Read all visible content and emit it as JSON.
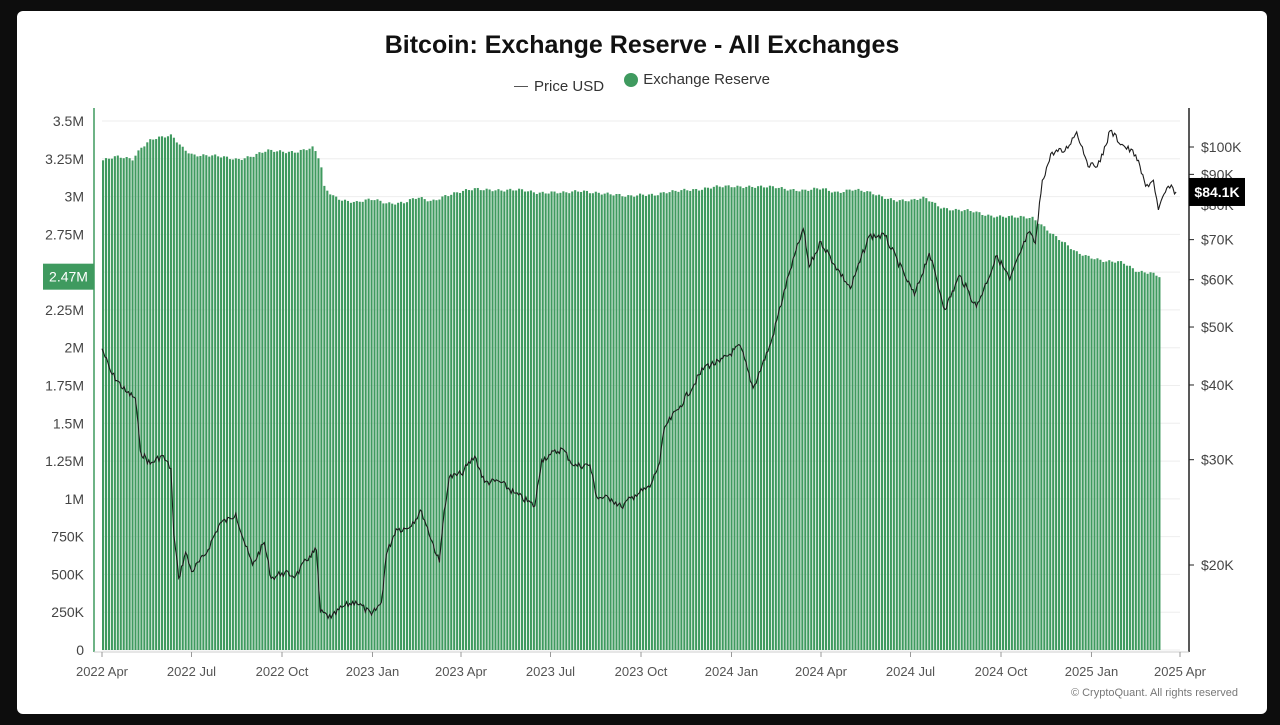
{
  "chart": {
    "title": "Bitcoin: Exchange Reserve - All Exchanges",
    "legend": {
      "price_label": "Price USD",
      "reserve_label": "Exchange Reserve"
    },
    "current_reserve_label": "2.47M",
    "current_price_label": "$84.1K",
    "watermark": "© CryptoQuant. All rights reserved"
  },
  "colors": {
    "reserve_bar": "#3f9a5f",
    "price_line": "#1c1c1c",
    "badge_reserve_bg": "#3f9a5f",
    "badge_price_bg": "#000000"
  },
  "chart_data": {
    "type": "bar",
    "title": "Bitcoin: Exchange Reserve - All Exchanges",
    "x_tick_labels": [
      "2022 Apr",
      "2022 Jul",
      "2022 Oct",
      "2023 Jan",
      "2023 Apr",
      "2023 Jul",
      "2023 Oct",
      "2024 Jan",
      "2024 Apr",
      "2024 Jul",
      "2024 Oct",
      "2025 Jan",
      "2025 Apr"
    ],
    "xlim": [
      "2022-04-01",
      "2025-04-01"
    ],
    "left_axis": {
      "name": "Exchange Reserve",
      "ylim": [
        0,
        3500000
      ],
      "ticks": [
        0,
        250000,
        500000,
        750000,
        1000000,
        1250000,
        1500000,
        1750000,
        2000000,
        2250000,
        2500000,
        2750000,
        3000000,
        3250000,
        3500000
      ],
      "tick_labels": [
        "0",
        "250K",
        "500K",
        "750K",
        "1M",
        "1.25M",
        "1.5M",
        "1.75M",
        "2M",
        "2.25M",
        "2.5M",
        "2.75M",
        "3M",
        "3.25M",
        "3.5M"
      ]
    },
    "right_axis": {
      "name": "Price USD",
      "scale": "log",
      "ticks": [
        20000,
        30000,
        40000,
        50000,
        60000,
        70000,
        80000,
        90000,
        100000
      ],
      "tick_labels": [
        "$20K",
        "$30K",
        "$40K",
        "$50K",
        "$60K",
        "$70K",
        "$80K",
        "$90K",
        "$100K"
      ]
    },
    "series": [
      {
        "name": "Exchange Reserve",
        "kind": "bar",
        "points": [
          [
            "2022-04-01",
            3240000
          ],
          [
            "2022-04-15",
            3260000
          ],
          [
            "2022-05-01",
            3250000
          ],
          [
            "2022-05-10",
            3330000
          ],
          [
            "2022-05-20",
            3380000
          ],
          [
            "2022-06-01",
            3390000
          ],
          [
            "2022-06-10",
            3400000
          ],
          [
            "2022-06-20",
            3330000
          ],
          [
            "2022-07-01",
            3280000
          ],
          [
            "2022-07-15",
            3270000
          ],
          [
            "2022-08-01",
            3260000
          ],
          [
            "2022-08-15",
            3250000
          ],
          [
            "2022-09-01",
            3270000
          ],
          [
            "2022-09-15",
            3300000
          ],
          [
            "2022-10-01",
            3300000
          ],
          [
            "2022-10-15",
            3300000
          ],
          [
            "2022-11-01",
            3320000
          ],
          [
            "2022-11-08",
            3230000
          ],
          [
            "2022-11-12",
            3060000
          ],
          [
            "2022-11-20",
            3010000
          ],
          [
            "2022-12-01",
            2980000
          ],
          [
            "2022-12-15",
            2960000
          ],
          [
            "2023-01-01",
            2980000
          ],
          [
            "2023-01-15",
            2960000
          ],
          [
            "2023-02-01",
            2960000
          ],
          [
            "2023-02-15",
            2990000
          ],
          [
            "2023-03-01",
            2970000
          ],
          [
            "2023-03-15",
            3010000
          ],
          [
            "2023-04-01",
            3030000
          ],
          [
            "2023-04-15",
            3050000
          ],
          [
            "2023-05-01",
            3050000
          ],
          [
            "2023-05-15",
            3040000
          ],
          [
            "2023-06-01",
            3040000
          ],
          [
            "2023-06-15",
            3030000
          ],
          [
            "2023-07-01",
            3030000
          ],
          [
            "2023-07-15",
            3020000
          ],
          [
            "2023-08-01",
            3040000
          ],
          [
            "2023-08-15",
            3030000
          ],
          [
            "2023-09-01",
            3010000
          ],
          [
            "2023-09-15",
            3000000
          ],
          [
            "2023-10-01",
            3020000
          ],
          [
            "2023-10-15",
            3010000
          ],
          [
            "2023-11-01",
            3030000
          ],
          [
            "2023-11-15",
            3050000
          ],
          [
            "2023-12-01",
            3050000
          ],
          [
            "2023-12-15",
            3060000
          ],
          [
            "2024-01-01",
            3070000
          ],
          [
            "2024-01-15",
            3070000
          ],
          [
            "2024-02-01",
            3060000
          ],
          [
            "2024-02-15",
            3060000
          ],
          [
            "2024-03-01",
            3050000
          ],
          [
            "2024-03-15",
            3040000
          ],
          [
            "2024-04-01",
            3050000
          ],
          [
            "2024-04-15",
            3030000
          ],
          [
            "2024-05-01",
            3050000
          ],
          [
            "2024-05-15",
            3030000
          ],
          [
            "2024-06-01",
            3000000
          ],
          [
            "2024-06-15",
            2980000
          ],
          [
            "2024-07-01",
            2970000
          ],
          [
            "2024-07-15",
            2990000
          ],
          [
            "2024-08-01",
            2930000
          ],
          [
            "2024-08-15",
            2910000
          ],
          [
            "2024-09-01",
            2900000
          ],
          [
            "2024-09-15",
            2880000
          ],
          [
            "2024-10-01",
            2870000
          ],
          [
            "2024-10-15",
            2860000
          ],
          [
            "2024-11-01",
            2860000
          ],
          [
            "2024-11-10",
            2820000
          ],
          [
            "2024-11-20",
            2760000
          ],
          [
            "2024-12-01",
            2700000
          ],
          [
            "2024-12-15",
            2630000
          ],
          [
            "2025-01-01",
            2600000
          ],
          [
            "2025-01-15",
            2570000
          ],
          [
            "2025-02-01",
            2560000
          ],
          [
            "2025-02-15",
            2510000
          ],
          [
            "2025-03-01",
            2500000
          ],
          [
            "2025-03-10",
            2470000
          ]
        ]
      },
      {
        "name": "Price USD",
        "kind": "line",
        "points": [
          [
            "2022-04-01",
            46000
          ],
          [
            "2022-04-10",
            42000
          ],
          [
            "2022-04-25",
            39000
          ],
          [
            "2022-05-05",
            38000
          ],
          [
            "2022-05-10",
            31000
          ],
          [
            "2022-05-20",
            29500
          ],
          [
            "2022-06-01",
            30500
          ],
          [
            "2022-06-10",
            29000
          ],
          [
            "2022-06-13",
            22500
          ],
          [
            "2022-06-18",
            19000
          ],
          [
            "2022-06-25",
            21000
          ],
          [
            "2022-07-01",
            19500
          ],
          [
            "2022-07-15",
            20800
          ],
          [
            "2022-07-30",
            23500
          ],
          [
            "2022-08-10",
            23900
          ],
          [
            "2022-08-15",
            24400
          ],
          [
            "2022-08-25",
            21500
          ],
          [
            "2022-09-01",
            20000
          ],
          [
            "2022-09-13",
            21800
          ],
          [
            "2022-09-20",
            19000
          ],
          [
            "2022-10-01",
            19400
          ],
          [
            "2022-10-15",
            19200
          ],
          [
            "2022-10-29",
            20700
          ],
          [
            "2022-11-05",
            21200
          ],
          [
            "2022-11-09",
            16700
          ],
          [
            "2022-11-20",
            16300
          ],
          [
            "2022-12-01",
            17000
          ],
          [
            "2022-12-15",
            17400
          ],
          [
            "2022-12-31",
            16500
          ],
          [
            "2023-01-10",
            17300
          ],
          [
            "2023-01-15",
            20800
          ],
          [
            "2023-01-25",
            23000
          ],
          [
            "2023-02-05",
            23000
          ],
          [
            "2023-02-20",
            24600
          ],
          [
            "2023-03-10",
            20200
          ],
          [
            "2023-03-15",
            24700
          ],
          [
            "2023-03-20",
            28000
          ],
          [
            "2023-04-01",
            28400
          ],
          [
            "2023-04-15",
            30400
          ],
          [
            "2023-04-25",
            27500
          ],
          [
            "2023-05-10",
            27600
          ],
          [
            "2023-05-25",
            26400
          ],
          [
            "2023-06-15",
            25100
          ],
          [
            "2023-06-22",
            30000
          ],
          [
            "2023-07-01",
            30600
          ],
          [
            "2023-07-13",
            31300
          ],
          [
            "2023-07-25",
            29300
          ],
          [
            "2023-08-10",
            29400
          ],
          [
            "2023-08-17",
            26000
          ],
          [
            "2023-09-01",
            25800
          ],
          [
            "2023-09-11",
            25000
          ],
          [
            "2023-09-25",
            26200
          ],
          [
            "2023-10-10",
            27000
          ],
          [
            "2023-10-20",
            29700
          ],
          [
            "2023-10-25",
            34000
          ],
          [
            "2023-11-10",
            36900
          ],
          [
            "2023-12-05",
            43000
          ],
          [
            "2023-12-20",
            43700
          ],
          [
            "2024-01-10",
            46500
          ],
          [
            "2024-01-23",
            39500
          ],
          [
            "2024-02-10",
            47000
          ],
          [
            "2024-02-28",
            61000
          ],
          [
            "2024-03-14",
            73000
          ],
          [
            "2024-03-20",
            63000
          ],
          [
            "2024-04-01",
            69500
          ],
          [
            "2024-04-15",
            63500
          ],
          [
            "2024-05-01",
            58000
          ],
          [
            "2024-05-20",
            71000
          ],
          [
            "2024-06-05",
            71000
          ],
          [
            "2024-06-25",
            61000
          ],
          [
            "2024-07-05",
            56500
          ],
          [
            "2024-07-20",
            66500
          ],
          [
            "2024-08-05",
            53500
          ],
          [
            "2024-08-20",
            61000
          ],
          [
            "2024-09-06",
            54000
          ],
          [
            "2024-09-27",
            65800
          ],
          [
            "2024-10-10",
            60000
          ],
          [
            "2024-10-29",
            72000
          ],
          [
            "2024-11-05",
            69000
          ],
          [
            "2024-11-12",
            88000
          ],
          [
            "2024-11-22",
            98000
          ],
          [
            "2024-12-05",
            98500
          ],
          [
            "2024-12-17",
            106000
          ],
          [
            "2024-12-30",
            92500
          ],
          [
            "2025-01-10",
            94500
          ],
          [
            "2025-01-20",
            106500
          ],
          [
            "2025-02-01",
            101000
          ],
          [
            "2025-02-15",
            97000
          ],
          [
            "2025-02-25",
            86000
          ],
          [
            "2025-03-05",
            88000
          ],
          [
            "2025-03-10",
            78500
          ],
          [
            "2025-03-20",
            86000
          ],
          [
            "2025-03-28",
            84100
          ]
        ]
      }
    ],
    "grid": "horizontal",
    "legend_position": "top-center"
  }
}
